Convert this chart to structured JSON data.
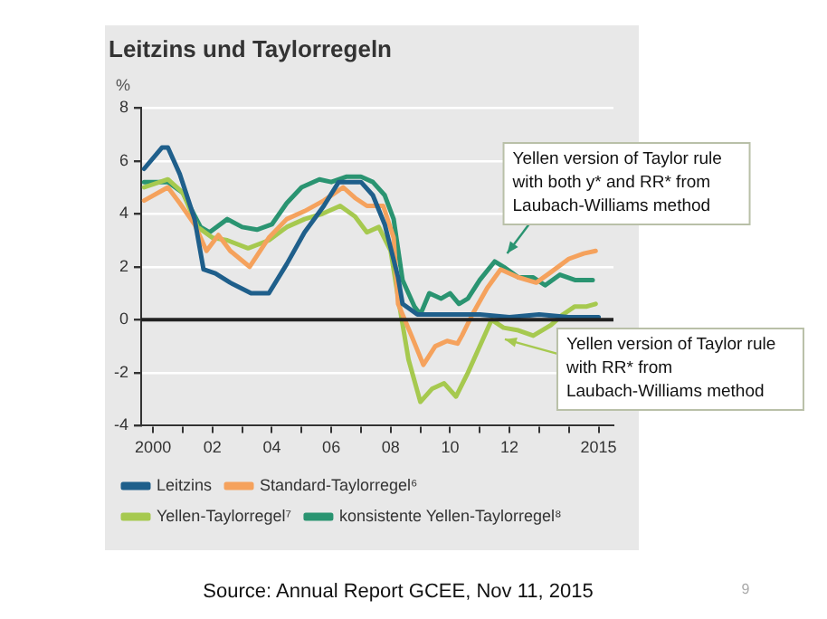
{
  "chart_data": {
    "type": "line",
    "title": "Leitzins und Taylorregeln",
    "ylabel": "%",
    "xlim": [
      1999.6,
      2015.5
    ],
    "ylim": [
      -4,
      8
    ],
    "xticks": [
      {
        "value": 2000,
        "label": "2000"
      },
      {
        "value": 2001,
        "label": null
      },
      {
        "value": 2002,
        "label": "02"
      },
      {
        "value": 2003,
        "label": null
      },
      {
        "value": 2004,
        "label": "04"
      },
      {
        "value": 2005,
        "label": null
      },
      {
        "value": 2006,
        "label": "06"
      },
      {
        "value": 2007,
        "label": null
      },
      {
        "value": 2008,
        "label": "08"
      },
      {
        "value": 2009,
        "label": null
      },
      {
        "value": 2010,
        "label": "10"
      },
      {
        "value": 2011,
        "label": null
      },
      {
        "value": 2012,
        "label": "12"
      },
      {
        "value": 2013,
        "label": null
      },
      {
        "value": 2014,
        "label": null
      },
      {
        "value": 2015,
        "label": "2015"
      }
    ],
    "yticks": [
      -4,
      -2,
      0,
      2,
      4,
      6,
      8
    ],
    "grid": "y",
    "legend": "bottom",
    "marker": "none",
    "line_style": "solid",
    "ref_lines": [
      {
        "axis": "y",
        "value": 0,
        "color": "#222222"
      }
    ],
    "series": [
      {
        "name": "Leitzins",
        "color": "#1f5f8b",
        "x": [
          1999.7,
          2000.3,
          2000.5,
          2000.9,
          2001.4,
          2001.7,
          2002.1,
          2002.6,
          2003.3,
          2003.9,
          2004.5,
          2005.1,
          2005.75,
          2006.25,
          2007.0,
          2007.4,
          2007.8,
          2008.25,
          2008.4,
          2008.9,
          2010.0,
          2011.0,
          2012.0,
          2013.0,
          2014.0,
          2015.0
        ],
        "values": [
          5.7,
          6.5,
          6.5,
          5.5,
          3.8,
          1.9,
          1.75,
          1.4,
          1.0,
          1.0,
          2.1,
          3.3,
          4.3,
          5.2,
          5.2,
          4.7,
          3.6,
          1.6,
          0.6,
          0.2,
          0.2,
          0.2,
          0.1,
          0.2,
          0.1,
          0.1
        ]
      },
      {
        "name": "Standard-Taylorregel⁶",
        "color": "#f5a25d",
        "x": [
          1999.7,
          2000.5,
          2000.9,
          2001.4,
          2001.8,
          2002.2,
          2002.6,
          2003.25,
          2003.9,
          2004.5,
          2005.1,
          2005.75,
          2006.4,
          2006.8,
          2007.2,
          2007.75,
          2008.1,
          2008.25,
          2008.7,
          2009.1,
          2009.5,
          2009.9,
          2010.25,
          2010.4,
          2010.75,
          2011.25,
          2011.7,
          2012.3,
          2012.9,
          2013.4,
          2014.0,
          2014.5,
          2014.9
        ],
        "values": [
          4.5,
          5.0,
          4.4,
          3.6,
          2.6,
          3.2,
          2.6,
          2.0,
          3.1,
          3.8,
          4.1,
          4.5,
          5.0,
          4.6,
          4.3,
          4.3,
          3.1,
          0.6,
          -0.6,
          -1.7,
          -1.0,
          -0.8,
          -0.9,
          -0.6,
          0.2,
          1.2,
          1.9,
          1.6,
          1.4,
          1.8,
          2.3,
          2.5,
          2.6
        ]
      },
      {
        "name": "Yellen-Taylorregel⁷",
        "color": "#a6c94f",
        "x": [
          1999.7,
          2000.5,
          2001.0,
          2001.5,
          2002.0,
          2002.5,
          2003.2,
          2003.9,
          2004.5,
          2005.1,
          2005.7,
          2006.3,
          2006.8,
          2007.2,
          2007.6,
          2008.0,
          2008.3,
          2008.6,
          2009.0,
          2009.4,
          2009.8,
          2010.2,
          2010.6,
          2011.0,
          2011.4,
          2011.8,
          2012.3,
          2012.8,
          2013.4,
          2013.8,
          2014.2,
          2014.6,
          2014.9
        ],
        "values": [
          5.0,
          5.3,
          4.8,
          3.5,
          3.1,
          3.0,
          2.7,
          3.0,
          3.5,
          3.8,
          4.0,
          4.3,
          3.9,
          3.3,
          3.5,
          2.6,
          0.5,
          -1.5,
          -3.1,
          -2.6,
          -2.4,
          -2.9,
          -2.0,
          -1.0,
          0.0,
          -0.3,
          -0.4,
          -0.6,
          -0.2,
          0.2,
          0.5,
          0.5,
          0.6
        ]
      },
      {
        "name": "konsistente Yellen-Taylorregel⁸",
        "color": "#2a9471",
        "x": [
          1999.7,
          2000.5,
          2001.0,
          2001.6,
          2001.9,
          2002.5,
          2003.0,
          2003.5,
          2004.0,
          2004.5,
          2005.0,
          2005.6,
          2006.0,
          2006.5,
          2007.0,
          2007.4,
          2007.8,
          2008.1,
          2008.4,
          2008.8,
          2009.0,
          2009.3,
          2009.7,
          2010.0,
          2010.3,
          2010.6,
          2011.0,
          2011.5,
          2011.8,
          2012.3,
          2012.8,
          2013.2,
          2013.7,
          2014.2,
          2014.8
        ],
        "values": [
          5.2,
          5.2,
          4.8,
          3.5,
          3.3,
          3.8,
          3.5,
          3.4,
          3.6,
          4.4,
          5.0,
          5.3,
          5.2,
          5.4,
          5.4,
          5.2,
          4.7,
          3.8,
          1.5,
          0.5,
          0.2,
          1.0,
          0.8,
          1.0,
          0.6,
          0.8,
          1.5,
          2.2,
          2.0,
          1.6,
          1.6,
          1.3,
          1.7,
          1.5,
          1.5
        ]
      }
    ],
    "annotations": [
      {
        "text": "Yellen version of Taylor rule with both y* and RR* from Laubach-Williams method",
        "x": 2011.8,
        "y": 2.3
      },
      {
        "text": "Yellen version of Taylor rule with RR* from Laubach-Williams method",
        "x": 2011.6,
        "y": -0.6
      },
      "Source: Annual Report GCEE, Nov 11, 2015",
      "9"
    ]
  }
}
